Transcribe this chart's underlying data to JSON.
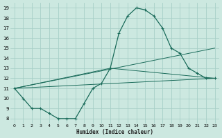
{
  "xlabel": "Humidex (Indice chaleur)",
  "bg_color": "#cce8e0",
  "grid_color": "#a8cfc7",
  "line_color": "#1a6b5a",
  "xlim": [
    -0.5,
    23.5
  ],
  "ylim": [
    7.5,
    19.5
  ],
  "xticks": [
    0,
    1,
    2,
    3,
    4,
    5,
    6,
    7,
    8,
    9,
    10,
    11,
    12,
    13,
    14,
    15,
    16,
    17,
    18,
    19,
    20,
    21,
    22,
    23
  ],
  "yticks": [
    8,
    9,
    10,
    11,
    12,
    13,
    14,
    15,
    16,
    17,
    18,
    19
  ],
  "curve1_x": [
    0,
    1,
    2,
    3,
    4,
    5,
    6,
    7,
    8,
    9,
    10,
    11,
    12,
    13,
    14,
    15,
    16,
    17,
    18,
    19,
    20,
    21,
    22,
    23
  ],
  "curve1_y": [
    11,
    10,
    9,
    9,
    8.5,
    8,
    8,
    8,
    9.5,
    11,
    11.5,
    13,
    16.5,
    18.2,
    19,
    18.8,
    18.2,
    17,
    15,
    14.5,
    13,
    12.5,
    12,
    12
  ],
  "line1_x": [
    0,
    23
  ],
  "line1_y": [
    11,
    12
  ],
  "line2_x": [
    0,
    23
  ],
  "line2_y": [
    11,
    15
  ],
  "line3_x": [
    0,
    11,
    23
  ],
  "line3_y": [
    11,
    13,
    12
  ]
}
